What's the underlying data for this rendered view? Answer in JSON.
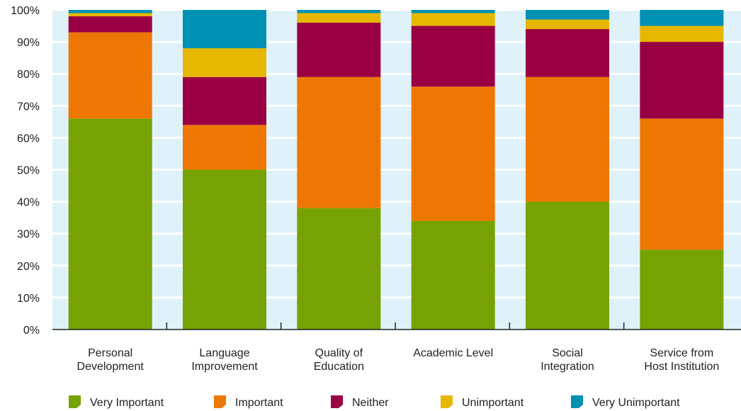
{
  "chart_data": {
    "type": "bar",
    "stacked": true,
    "categories": [
      [
        "Personal",
        "Development"
      ],
      [
        "Language",
        "Improvement"
      ],
      [
        "Quality of",
        "Education"
      ],
      [
        "Academic Level"
      ],
      [
        "Social",
        "Integration"
      ],
      [
        "Service from",
        "Host Institution"
      ]
    ],
    "series": [
      {
        "name": "Very Important",
        "color": "#77a204",
        "values": [
          66,
          50,
          38,
          34,
          40,
          25
        ]
      },
      {
        "name": "Important",
        "color": "#ee7703",
        "values": [
          27,
          14,
          41,
          42,
          39,
          41
        ]
      },
      {
        "name": "Neither",
        "color": "#990043",
        "values": [
          5,
          15,
          17,
          19,
          15,
          24
        ]
      },
      {
        "name": "Unimportant",
        "color": "#e5b700",
        "values": [
          1,
          9,
          3,
          4,
          3,
          5
        ]
      },
      {
        "name": "Very Unimportant",
        "color": "#0090b3",
        "values": [
          1,
          12,
          1,
          1,
          3,
          5
        ]
      }
    ],
    "yticks": [
      "0%",
      "10%",
      "20%",
      "30%",
      "40%",
      "50%",
      "60%",
      "70%",
      "80%",
      "90%",
      "100%"
    ],
    "ylim": [
      0,
      100
    ],
    "grid": true,
    "legend": "bottom",
    "title": "",
    "xlabel": "",
    "ylabel": "",
    "background_color": "#dff1f9",
    "grid_color": "#ffffff"
  }
}
